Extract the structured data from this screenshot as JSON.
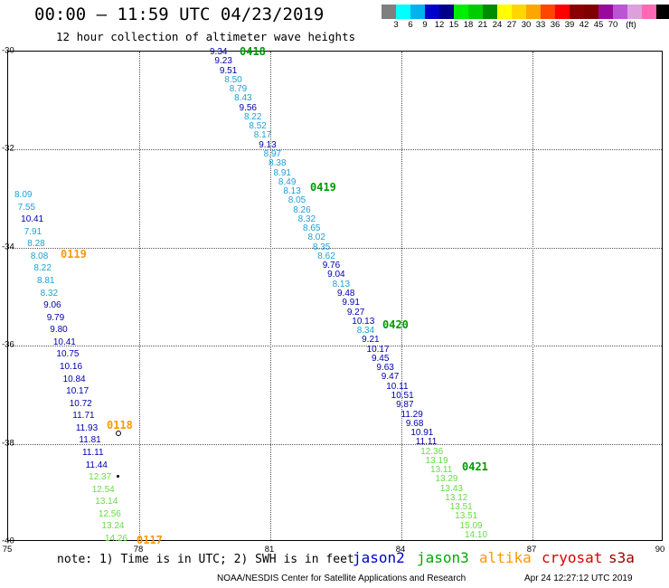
{
  "header": {
    "title": "00:00 – 11:59 UTC 04/23/2019",
    "subtitle": "12 hour collection of altimeter wave heights"
  },
  "colorbar": {
    "swatches": [
      "#7f7f7f",
      "#00ffff",
      "#00b2ee",
      "#0000cd",
      "#00008b",
      "#00ee00",
      "#00cd00",
      "#008b00",
      "#ffff00",
      "#ffd700",
      "#ffa500",
      "#ff4500",
      "#ff0000",
      "#8b0000",
      "#800000",
      "#9a0a9a",
      "#ba55d3",
      "#dda0dd",
      "#ff69b4",
      "#000000"
    ],
    "ticks": [
      "3",
      "6",
      "9",
      "12",
      "15",
      "18",
      "21",
      "24",
      "27",
      "30",
      "33",
      "36",
      "39",
      "42",
      "45",
      "70",
      "(ft)"
    ]
  },
  "axes": {
    "lat_labels": [
      "-30",
      "-32",
      "-34",
      "-36",
      "-38",
      "-40"
    ],
    "lon_labels": [
      "75",
      "78",
      "81",
      "84",
      "87",
      "90"
    ]
  },
  "colors": {
    "jason2": "#0000aa",
    "jason3": "#009900",
    "altika": "#ff9900",
    "cryosat": "#cc0000",
    "s3a": "#aa0000",
    "light_blue": "#1e9fd6",
    "light_green": "#66dd44"
  },
  "pass_times": {
    "t0418": "0418",
    "t0419": "0419",
    "t0420": "0420",
    "t0421": "0421",
    "t0119": "0119",
    "t0118": "0118",
    "t0117": "0117"
  },
  "track_east": [
    "9.34",
    "9.23",
    "9.51",
    "8.50",
    "8.79",
    "8.43",
    "9.56",
    "8.22",
    "8.52",
    "8.17",
    "9.13",
    "8.97",
    "8.38",
    "8.91",
    "8.49",
    "8.13",
    "8.05",
    "8.26",
    "8.32",
    "8.65",
    "8.02",
    "8.35",
    "8.62",
    "9.76",
    "9.04",
    "8.13",
    "9.48",
    "9.91",
    "9.27",
    "10.13",
    "8.34",
    "9.21",
    "10.17",
    "9.45",
    "9.63",
    "9.47",
    "10.11",
    "10.51",
    "9.87",
    "11.29",
    "9.68",
    "10.91",
    "11.11",
    "12.36",
    "13.19",
    "13.11",
    "13.29",
    "13.43",
    "13.12",
    "13.51",
    "13.51",
    "15.09",
    "14.10"
  ],
  "track_west": [
    "8.09",
    "7.55",
    "10.41",
    "7.91",
    "8.28",
    "8.08",
    "8.22",
    "8.81",
    "8.32",
    "9.06",
    "9.79",
    "9.80",
    "10.41",
    "10.75",
    "10.16",
    "10.84",
    "10.17",
    "10.72",
    "11.71",
    "11.93",
    "11.81",
    "11.11",
    "11.44",
    "12.37",
    "12.54",
    "13.14",
    "12.56",
    "13.24",
    "14.26"
  ],
  "note": "note: 1) Time is in UTC; 2) SWH is in feet",
  "legend": {
    "jason2": "jason2",
    "jason3": "jason3",
    "altika": "altika",
    "cryosat": "cryosat",
    "s3a": "s3a"
  },
  "footer": {
    "credit": "NOAA/NESDIS Center for Satellite Applications and Research",
    "timestamp": "Apr 24 12:27:12 UTC 2019"
  }
}
